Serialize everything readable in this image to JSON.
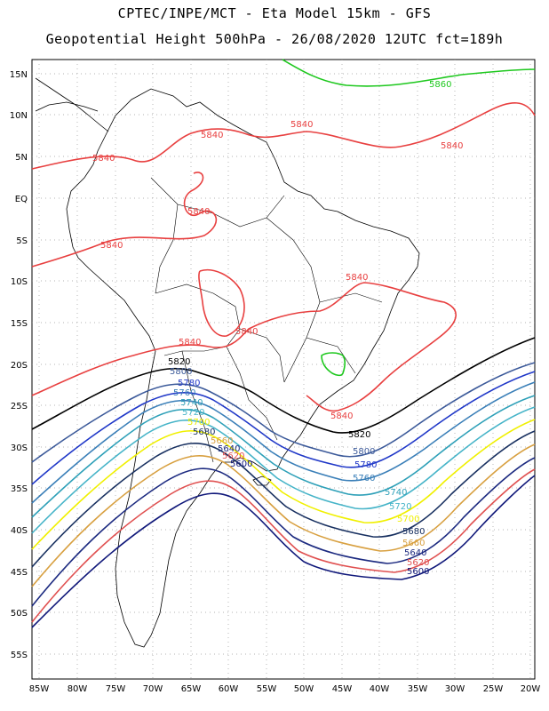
{
  "title_line1": "CPTEC/INPE/MCT -  Eta Model 15km - GFS",
  "title_line2": "Geopotential Height 500hPa - 26/08/2020 12UTC fct=189h",
  "lat_labels": [
    "15N",
    "10N",
    "5N",
    "EQ",
    "5S",
    "10S",
    "15S",
    "20S",
    "25S",
    "30S",
    "35S",
    "40S",
    "45S",
    "50S",
    "55S"
  ],
  "lon_labels": [
    "85W",
    "80W",
    "75W",
    "70W",
    "65W",
    "60W",
    "55W",
    "50W",
    "45W",
    "40W",
    "35W",
    "30W",
    "25W",
    "20W"
  ],
  "contour_labels": {
    "c5860": "5860",
    "c5840": "5840",
    "c5820": "5820",
    "c5800": "5800",
    "c5780": "5780",
    "c5760": "5760",
    "c5740": "5740",
    "c5720": "5720",
    "c5700": "5700",
    "c5680": "5680",
    "c5660": "5660",
    "c5640": "5640",
    "c5620": "5620",
    "c5600": "5600"
  },
  "colors": {
    "c5860": "#1ec81e",
    "c5840": "#e84040",
    "c5820": "#000000",
    "c5800": "#3c5a9a",
    "c5780": "#2038c8",
    "c5760": "#3a7fb8",
    "c5740": "#2ea0b8",
    "c5720": "#46b4c8",
    "c5700": "#f0f000",
    "c5680": "#183060",
    "c5660": "#d8a040",
    "c5640": "#1c2a80",
    "c5620": "#e05050",
    "c5600": "#10187a"
  }
}
